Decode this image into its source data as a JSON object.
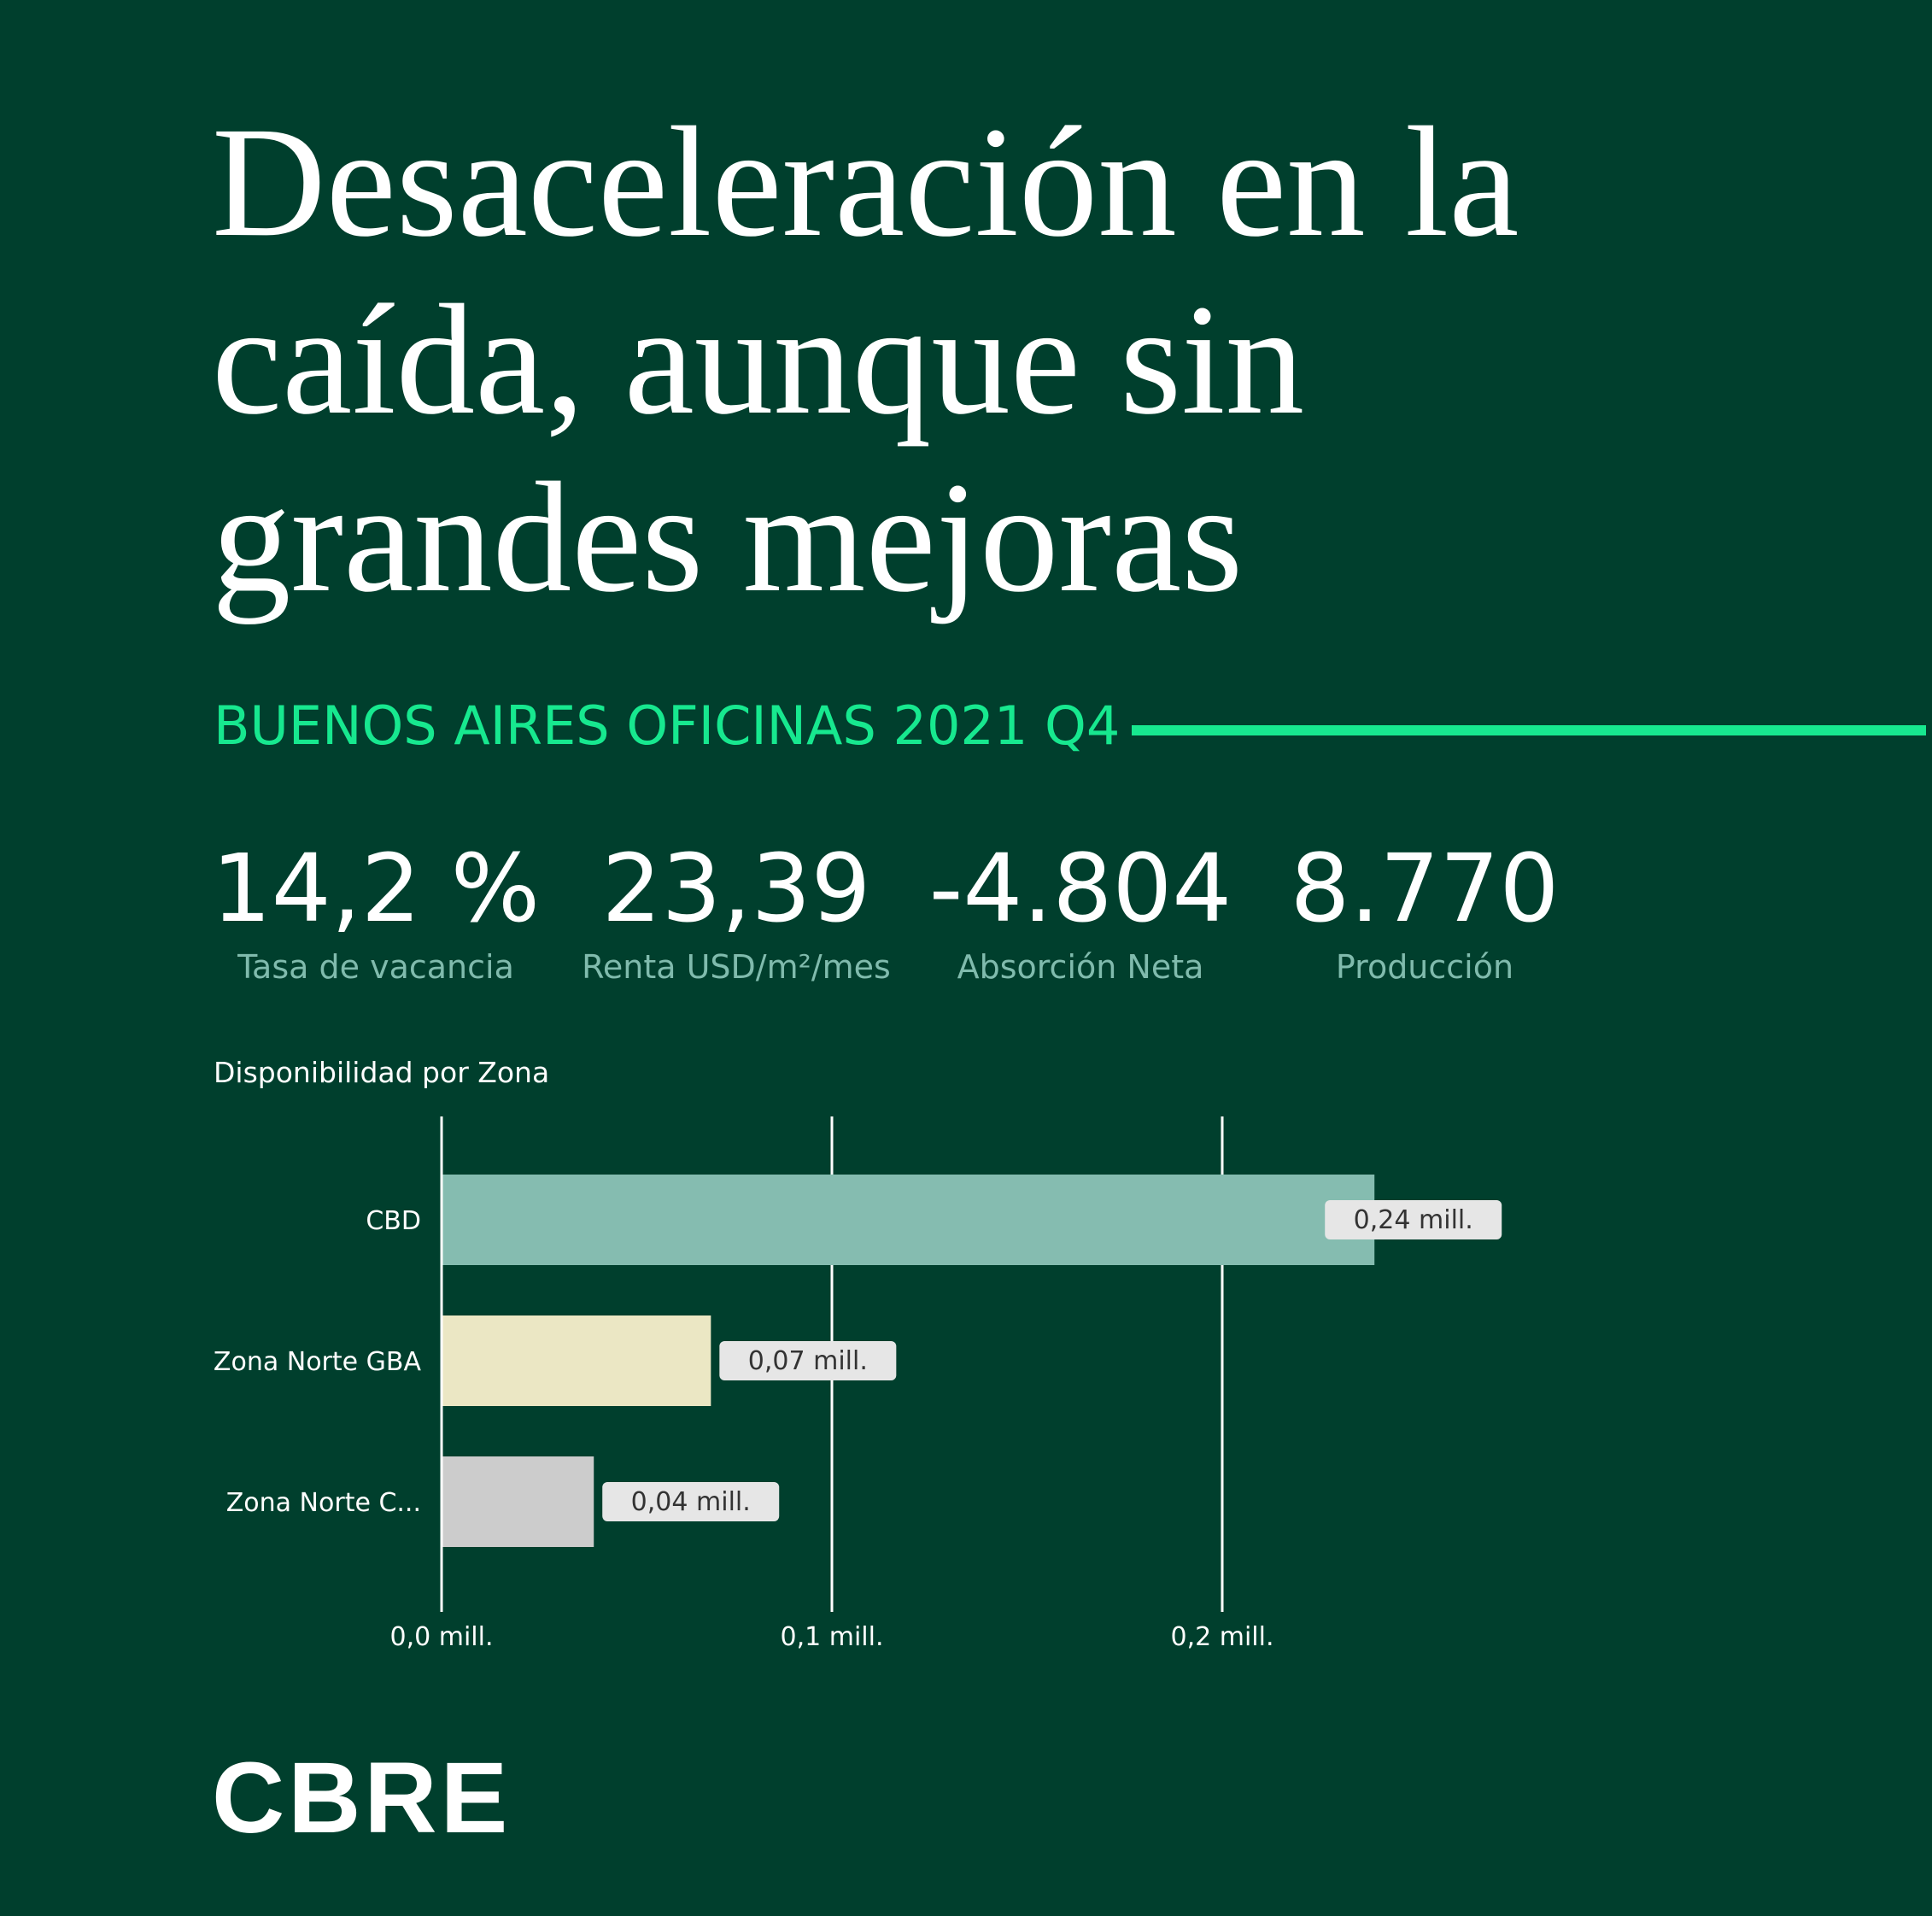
{
  "headline": {
    "line1": "Desaceleración en la",
    "line2": "caída, aunque sin",
    "line3": "grandes mejoras"
  },
  "section_title": "BUENOS AIRES OFICINAS 2021 Q4",
  "kpis": [
    {
      "value": "14,2 %",
      "label": "Tasa de vacancia"
    },
    {
      "value": "23,39",
      "label": "Renta USD/m²/mes"
    },
    {
      "value": "-4.804",
      "label": "Absorción Neta"
    },
    {
      "value": "8.770",
      "label": "Producción"
    }
  ],
  "logo": "CBRE",
  "colors": {
    "background": "#003f2d",
    "accent": "#17e88f",
    "kpi_label": "#80bbad"
  },
  "chart_data": {
    "type": "bar",
    "orientation": "horizontal",
    "title": "Disponibilidad por Zona",
    "categories": [
      "CBD",
      "Zona Norte GBA",
      "Zona Norte C..."
    ],
    "values": [
      0.239,
      0.069,
      0.039
    ],
    "data_labels": [
      "0,24 mill.",
      "0,07 mill.",
      "0,04 mill."
    ],
    "colors": [
      "#85bcb0",
      "#ebe7c4",
      "#cccccc"
    ],
    "xlim": [
      0,
      0.3
    ],
    "xticks": [
      0,
      0.1,
      0.2
    ],
    "xtick_labels": [
      "0,0 mill.",
      "0,1 mill.",
      "0,2 mill."
    ],
    "grid": true
  }
}
